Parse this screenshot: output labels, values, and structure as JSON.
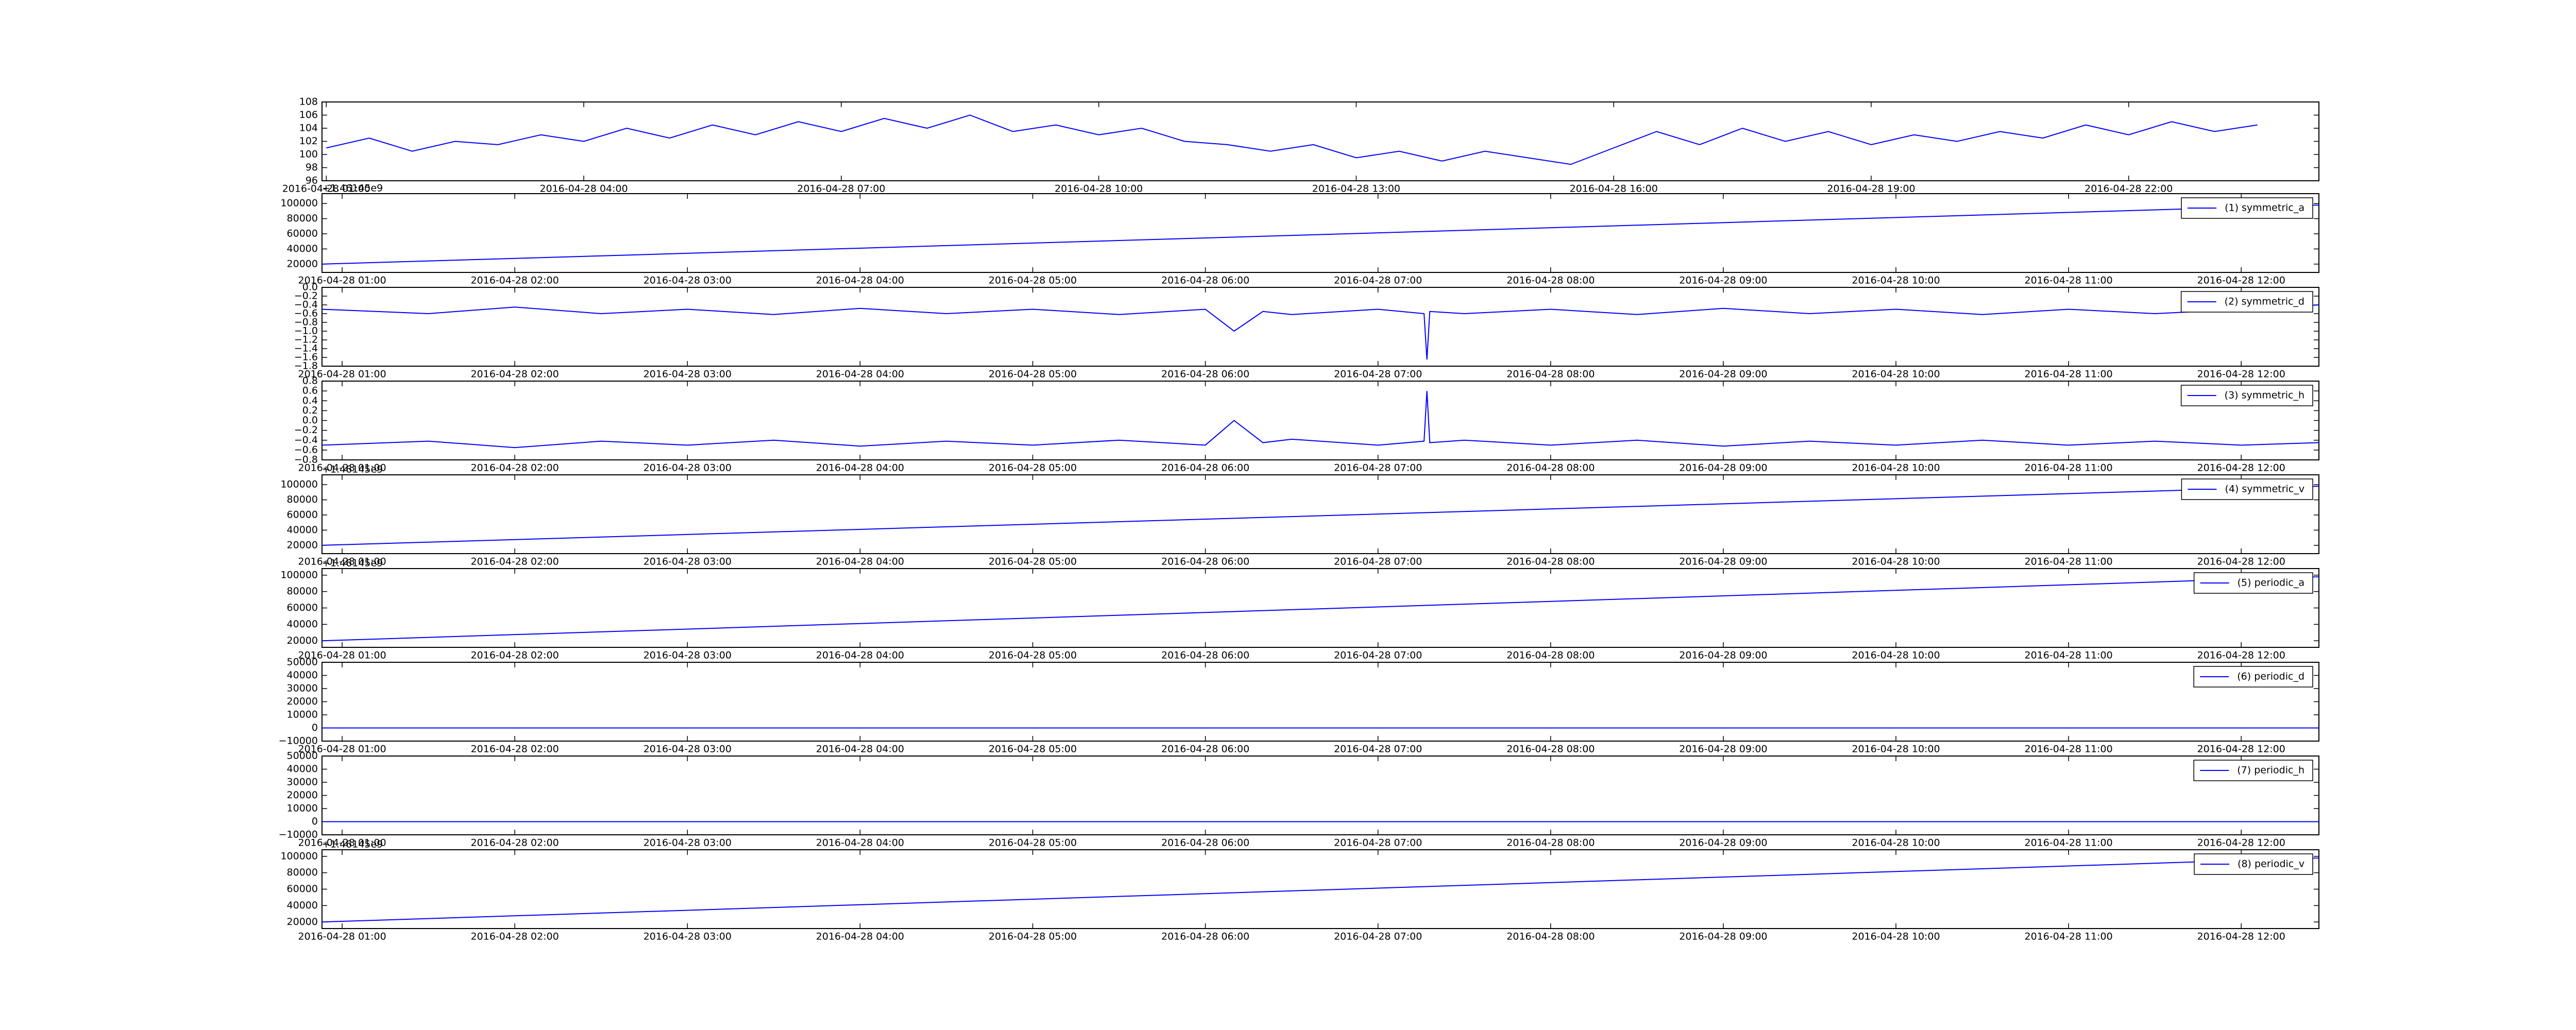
{
  "chart_data": [
    {
      "type": "line",
      "xlim": [
        "2016-04-28 00:57",
        "2016-04-29 00:13"
      ],
      "ylim": [
        96,
        108
      ],
      "yticks": [
        96,
        98,
        100,
        102,
        104,
        106,
        108
      ],
      "xticks": [
        "2016-04-28 01:00",
        "2016-04-28 04:00",
        "2016-04-28 07:00",
        "2016-04-28 10:00",
        "2016-04-28 13:00",
        "2016-04-28 16:00",
        "2016-04-28 19:00",
        "2016-04-28 22:00"
      ],
      "x": [
        "2016-04-28 01:00",
        "2016-04-28 01:30",
        "2016-04-28 02:00",
        "2016-04-28 02:30",
        "2016-04-28 03:00",
        "2016-04-28 03:30",
        "2016-04-28 04:00",
        "2016-04-28 04:30",
        "2016-04-28 05:00",
        "2016-04-28 05:30",
        "2016-04-28 06:00",
        "2016-04-28 06:30",
        "2016-04-28 07:00",
        "2016-04-28 07:30",
        "2016-04-28 08:00",
        "2016-04-28 08:30",
        "2016-04-28 09:00",
        "2016-04-28 09:30",
        "2016-04-28 10:00",
        "2016-04-28 10:30",
        "2016-04-28 11:00",
        "2016-04-28 11:30",
        "2016-04-28 12:00",
        "2016-04-28 12:30",
        "2016-04-28 13:00",
        "2016-04-28 13:30",
        "2016-04-28 14:00",
        "2016-04-28 14:30",
        "2016-04-28 15:00",
        "2016-04-28 15:30",
        "2016-04-28 16:00",
        "2016-04-28 16:30",
        "2016-04-28 17:00",
        "2016-04-28 17:30",
        "2016-04-28 18:00",
        "2016-04-28 18:30",
        "2016-04-28 19:00",
        "2016-04-28 19:30",
        "2016-04-28 20:00",
        "2016-04-28 20:30",
        "2016-04-28 21:00",
        "2016-04-28 21:30",
        "2016-04-28 22:00",
        "2016-04-28 22:30",
        "2016-04-28 23:00",
        "2016-04-28 23:30"
      ],
      "series": [
        {
          "color": "#0000ff",
          "values": [
            101,
            102.5,
            100.5,
            102,
            101.5,
            103,
            102,
            104,
            102.5,
            104.5,
            103,
            105,
            103.5,
            105.5,
            104,
            106,
            103.5,
            104.5,
            103,
            104,
            102,
            101.5,
            100.5,
            101.5,
            99.5,
            100.5,
            99,
            100.5,
            99.5,
            98.5,
            101,
            103.5,
            101.5,
            104,
            102,
            103.5,
            101.5,
            103,
            102,
            103.5,
            102.5,
            104.5,
            103,
            105,
            103.5,
            104.5
          ]
        }
      ]
    },
    {
      "type": "line",
      "offset_text": "+1.46145e9",
      "xlim": [
        "2016-04-28 00:53",
        "2016-04-28 12:27"
      ],
      "ylim": [
        9000,
        113000
      ],
      "yticks": [
        20000,
        40000,
        60000,
        80000,
        100000
      ],
      "xticks": [
        "2016-04-28 01:00",
        "2016-04-28 02:00",
        "2016-04-28 03:00",
        "2016-04-28 04:00",
        "2016-04-28 05:00",
        "2016-04-28 06:00",
        "2016-04-28 07:00",
        "2016-04-28 08:00",
        "2016-04-28 09:00",
        "2016-04-28 10:00",
        "2016-04-28 11:00",
        "2016-04-28 12:00"
      ],
      "x": [
        "2016-04-28 00:53",
        "2016-04-28 12:27"
      ],
      "legend": "upper right",
      "series": [
        {
          "name": "(1) symmetric_a",
          "color": "#0000ff",
          "values": [
            20000,
            98000
          ]
        }
      ]
    },
    {
      "type": "line",
      "xlim": [
        "2016-04-28 00:53",
        "2016-04-28 12:27"
      ],
      "ylim": [
        -1.8,
        0
      ],
      "yticks": [
        {
          "value": -1.8,
          "label": "−1.8"
        },
        {
          "value": -1.6,
          "label": "−1.6"
        },
        {
          "value": -1.4,
          "label": "−1.4"
        },
        {
          "value": -1.2,
          "label": "−1.2"
        },
        {
          "value": -1,
          "label": "−1.0"
        },
        {
          "value": -0.8,
          "label": "−0.8"
        },
        {
          "value": -0.6,
          "label": "−0.6"
        },
        {
          "value": -0.4,
          "label": "−0.4"
        },
        {
          "value": -0.2,
          "label": "−0.2"
        },
        {
          "value": 0,
          "label": "0.0"
        }
      ],
      "xticks": [
        "2016-04-28 01:00",
        "2016-04-28 02:00",
        "2016-04-28 03:00",
        "2016-04-28 04:00",
        "2016-04-28 05:00",
        "2016-04-28 06:00",
        "2016-04-28 07:00",
        "2016-04-28 08:00",
        "2016-04-28 09:00",
        "2016-04-28 10:00",
        "2016-04-28 11:00",
        "2016-04-28 12:00"
      ],
      "x": [
        "2016-04-28 00:53",
        "2016-04-28 01:30",
        "2016-04-28 02:00",
        "2016-04-28 02:30",
        "2016-04-28 03:00",
        "2016-04-28 03:30",
        "2016-04-28 04:00",
        "2016-04-28 04:30",
        "2016-04-28 05:00",
        "2016-04-28 05:30",
        "2016-04-28 06:00",
        "2016-04-28 06:10",
        "2016-04-28 06:20",
        "2016-04-28 06:30",
        "2016-04-28 07:00",
        "2016-04-28 07:16",
        "2016-04-28 07:17",
        "2016-04-28 07:18",
        "2016-04-28 07:30",
        "2016-04-28 08:00",
        "2016-04-28 08:30",
        "2016-04-28 09:00",
        "2016-04-28 09:30",
        "2016-04-28 10:00",
        "2016-04-28 10:30",
        "2016-04-28 11:00",
        "2016-04-28 11:30",
        "2016-04-28 12:00",
        "2016-04-28 12:27"
      ],
      "legend": "upper right",
      "series": [
        {
          "name": "(2) symmetric_d",
          "color": "#0000ff",
          "values": [
            -0.5,
            -0.6,
            -0.45,
            -0.6,
            -0.5,
            -0.62,
            -0.48,
            -0.6,
            -0.5,
            -0.62,
            -0.5,
            -1.0,
            -0.55,
            -0.62,
            -0.5,
            -0.6,
            -1.65,
            -0.55,
            -0.6,
            -0.5,
            -0.62,
            -0.48,
            -0.6,
            -0.5,
            -0.62,
            -0.5,
            -0.6,
            -0.5,
            -0.4
          ]
        }
      ]
    },
    {
      "type": "line",
      "xlim": [
        "2016-04-28 00:53",
        "2016-04-28 12:27"
      ],
      "ylim": [
        -0.8,
        0.8
      ],
      "yticks": [
        {
          "value": -0.8,
          "label": "−0.8"
        },
        {
          "value": -0.6,
          "label": "−0.6"
        },
        {
          "value": -0.4,
          "label": "−0.4"
        },
        {
          "value": -0.2,
          "label": "−0.2"
        },
        {
          "value": 0,
          "label": "0.0"
        },
        {
          "value": 0.2,
          "label": "0.2"
        },
        {
          "value": 0.4,
          "label": "0.4"
        },
        {
          "value": 0.6,
          "label": "0.6"
        },
        {
          "value": 0.8,
          "label": "0.8"
        }
      ],
      "xticks": [
        "2016-04-28 01:00",
        "2016-04-28 02:00",
        "2016-04-28 03:00",
        "2016-04-28 04:00",
        "2016-04-28 05:00",
        "2016-04-28 06:00",
        "2016-04-28 07:00",
        "2016-04-28 08:00",
        "2016-04-28 09:00",
        "2016-04-28 10:00",
        "2016-04-28 11:00",
        "2016-04-28 12:00"
      ],
      "x": [
        "2016-04-28 00:53",
        "2016-04-28 01:30",
        "2016-04-28 02:00",
        "2016-04-28 02:30",
        "2016-04-28 03:00",
        "2016-04-28 03:30",
        "2016-04-28 04:00",
        "2016-04-28 04:30",
        "2016-04-28 05:00",
        "2016-04-28 05:30",
        "2016-04-28 06:00",
        "2016-04-28 06:10",
        "2016-04-28 06:20",
        "2016-04-28 06:30",
        "2016-04-28 07:00",
        "2016-04-28 07:16",
        "2016-04-28 07:17",
        "2016-04-28 07:18",
        "2016-04-28 07:30",
        "2016-04-28 08:00",
        "2016-04-28 08:30",
        "2016-04-28 09:00",
        "2016-04-28 09:30",
        "2016-04-28 10:00",
        "2016-04-28 10:30",
        "2016-04-28 11:00",
        "2016-04-28 11:30",
        "2016-04-28 12:00",
        "2016-04-28 12:27"
      ],
      "legend": "upper right",
      "series": [
        {
          "name": "(3) symmetric_h",
          "color": "#0000ff",
          "values": [
            -0.5,
            -0.42,
            -0.55,
            -0.42,
            -0.5,
            -0.4,
            -0.52,
            -0.42,
            -0.5,
            -0.4,
            -0.5,
            0.0,
            -0.45,
            -0.38,
            -0.5,
            -0.42,
            0.6,
            -0.45,
            -0.4,
            -0.5,
            -0.4,
            -0.52,
            -0.42,
            -0.5,
            -0.4,
            -0.5,
            -0.42,
            -0.5,
            -0.45
          ]
        }
      ]
    },
    {
      "type": "line",
      "offset_text": "+1.46145e9",
      "xlim": [
        "2016-04-28 00:53",
        "2016-04-28 12:27"
      ],
      "ylim": [
        9000,
        113000
      ],
      "yticks": [
        20000,
        40000,
        60000,
        80000,
        100000
      ],
      "xticks": [
        "2016-04-28 01:00",
        "2016-04-28 02:00",
        "2016-04-28 03:00",
        "2016-04-28 04:00",
        "2016-04-28 05:00",
        "2016-04-28 06:00",
        "2016-04-28 07:00",
        "2016-04-28 08:00",
        "2016-04-28 09:00",
        "2016-04-28 10:00",
        "2016-04-28 11:00",
        "2016-04-28 12:00"
      ],
      "x": [
        "2016-04-28 00:53",
        "2016-04-28 12:27"
      ],
      "legend": "upper right",
      "series": [
        {
          "name": "(4) symmetric_v",
          "color": "#0000ff",
          "values": [
            20000,
            98000
          ]
        }
      ]
    },
    {
      "type": "line",
      "offset_text": "+1.46145e9",
      "xlim": [
        "2016-04-28 00:53",
        "2016-04-28 12:27"
      ],
      "ylim": [
        12000,
        108000
      ],
      "yticks": [
        20000,
        40000,
        60000,
        80000,
        100000
      ],
      "xticks": [
        "2016-04-28 01:00",
        "2016-04-28 02:00",
        "2016-04-28 03:00",
        "2016-04-28 04:00",
        "2016-04-28 05:00",
        "2016-04-28 06:00",
        "2016-04-28 07:00",
        "2016-04-28 08:00",
        "2016-04-28 09:00",
        "2016-04-28 10:00",
        "2016-04-28 11:00",
        "2016-04-28 12:00"
      ],
      "x": [
        "2016-04-28 00:53",
        "2016-04-28 12:27"
      ],
      "legend": "upper right",
      "series": [
        {
          "name": "(5) periodic_a",
          "color": "#0000ff",
          "values": [
            20000,
            98000
          ]
        }
      ]
    },
    {
      "type": "line",
      "xlim": [
        "2016-04-28 00:53",
        "2016-04-28 12:27"
      ],
      "ylim": [
        -10000,
        50000
      ],
      "yticks": [
        {
          "value": -10000,
          "label": "−10000"
        },
        0,
        10000,
        20000,
        30000,
        40000,
        50000
      ],
      "xticks": [
        "2016-04-28 01:00",
        "2016-04-28 02:00",
        "2016-04-28 03:00",
        "2016-04-28 04:00",
        "2016-04-28 05:00",
        "2016-04-28 06:00",
        "2016-04-28 07:00",
        "2016-04-28 08:00",
        "2016-04-28 09:00",
        "2016-04-28 10:00",
        "2016-04-28 11:00",
        "2016-04-28 12:00"
      ],
      "x": [
        "2016-04-28 00:53",
        "2016-04-28 12:27"
      ],
      "legend": "upper right",
      "series": [
        {
          "name": "(6) periodic_d",
          "color": "#0000ff",
          "values": [
            0,
            0
          ]
        }
      ]
    },
    {
      "type": "line",
      "xlim": [
        "2016-04-28 00:53",
        "2016-04-28 12:27"
      ],
      "ylim": [
        -10000,
        50000
      ],
      "yticks": [
        {
          "value": -10000,
          "label": "−10000"
        },
        0,
        10000,
        20000,
        30000,
        40000,
        50000
      ],
      "xticks": [
        "2016-04-28 01:00",
        "2016-04-28 02:00",
        "2016-04-28 03:00",
        "2016-04-28 04:00",
        "2016-04-28 05:00",
        "2016-04-28 06:00",
        "2016-04-28 07:00",
        "2016-04-28 08:00",
        "2016-04-28 09:00",
        "2016-04-28 10:00",
        "2016-04-28 11:00",
        "2016-04-28 12:00"
      ],
      "x": [
        "2016-04-28 00:53",
        "2016-04-28 12:27"
      ],
      "legend": "upper right",
      "series": [
        {
          "name": "(7) periodic_h",
          "color": "#0000ff",
          "values": [
            0,
            0
          ]
        }
      ]
    },
    {
      "type": "line",
      "offset_text": "+1.46145e9",
      "xlim": [
        "2016-04-28 00:53",
        "2016-04-28 12:27"
      ],
      "ylim": [
        12000,
        108000
      ],
      "yticks": [
        20000,
        40000,
        60000,
        80000,
        100000
      ],
      "xticks": [
        "2016-04-28 01:00",
        "2016-04-28 02:00",
        "2016-04-28 03:00",
        "2016-04-28 04:00",
        "2016-04-28 05:00",
        "2016-04-28 06:00",
        "2016-04-28 07:00",
        "2016-04-28 08:00",
        "2016-04-28 09:00",
        "2016-04-28 10:00",
        "2016-04-28 11:00",
        "2016-04-28 12:00"
      ],
      "x": [
        "2016-04-28 00:53",
        "2016-04-28 12:27"
      ],
      "legend": "upper right",
      "series": [
        {
          "name": "(8) periodic_v",
          "color": "#0000ff",
          "values": [
            20000,
            98000
          ]
        }
      ]
    }
  ]
}
